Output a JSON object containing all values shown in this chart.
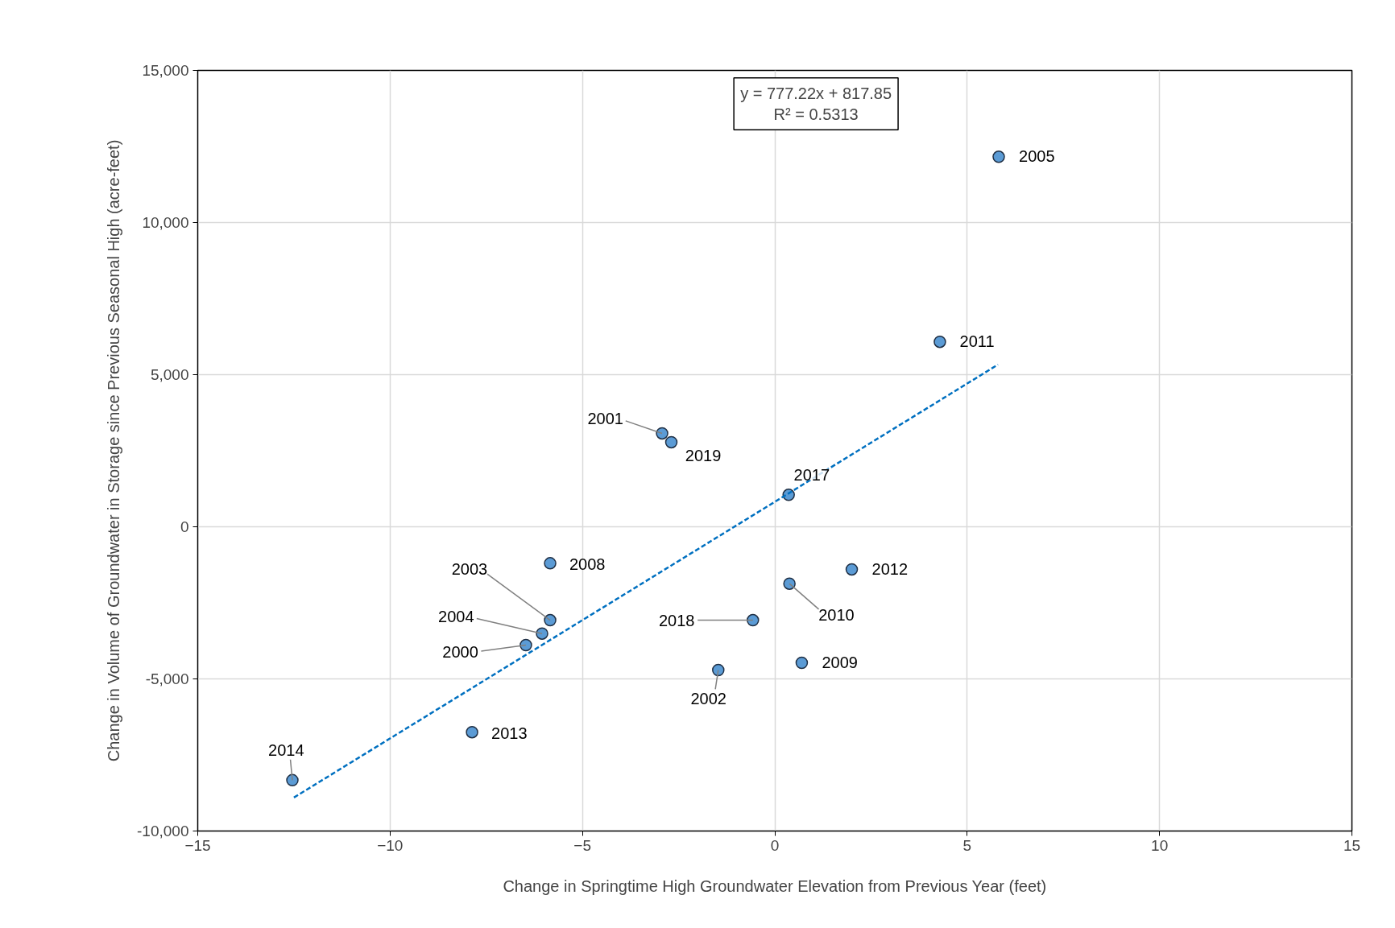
{
  "chart_data": {
    "type": "scatter",
    "xlabel": "Change in Springtime High Groundwater Elevation from Previous Year (feet)",
    "ylabel": "Change in Volume of Groundwater in Storage since Previous Seasonal High (acre-feet)",
    "xlim": [
      -15,
      15
    ],
    "xticks": [
      -15,
      -10,
      -5,
      0,
      5,
      10,
      15
    ],
    "ylim": [
      -10000,
      15000
    ],
    "yticks": [
      {
        "value": -10000,
        "label": "-10,000"
      },
      {
        "value": -5000,
        "label": "-5,000"
      },
      0,
      {
        "value": 5000,
        "label": "5,000"
      },
      {
        "value": 10000,
        "label": "10,000"
      },
      {
        "value": 15000,
        "label": "15,000"
      }
    ],
    "grid": true,
    "marker": "circle",
    "annotations": [
      "y = 777.22x + 817.85",
      "R² = 0.5313",
      {
        "text": "2000",
        "x": -6.47,
        "y": -3890
      },
      {
        "text": "2001",
        "x": -2.93,
        "y": 3070
      },
      {
        "text": "2002",
        "x": -1.47,
        "y": -4710
      },
      {
        "text": "2003",
        "x": -5.84,
        "y": -3070
      },
      {
        "text": "2004",
        "x": -6.05,
        "y": -3510
      },
      {
        "text": "2005",
        "x": 5.82,
        "y": 12160
      },
      {
        "text": "2008",
        "x": -5.84,
        "y": -1200
      },
      {
        "text": "2009",
        "x": 0.7,
        "y": -4470
      },
      {
        "text": "2010",
        "x": 0.38,
        "y": -1870
      },
      {
        "text": "2011",
        "x": 4.29,
        "y": 6080
      },
      {
        "text": "2012",
        "x": 2.0,
        "y": -1400
      },
      {
        "text": "2013",
        "x": -7.87,
        "y": -6750
      },
      {
        "text": "2014",
        "x": -12.54,
        "y": -8330
      },
      {
        "text": "2017",
        "x": 0.36,
        "y": 1050
      },
      {
        "text": "2018",
        "x": -0.57,
        "y": -3070
      },
      {
        "text": "2019",
        "x": -2.69,
        "y": 2780
      }
    ],
    "series": [
      {
        "color": "#5b9bd5",
        "x": [
          -6.47,
          -2.93,
          -1.47,
          -5.84,
          -6.05,
          5.82,
          -5.84,
          0.7,
          0.38,
          4.29,
          2.0,
          -7.87,
          -12.54,
          0.36,
          -0.57,
          -2.69
        ],
        "values": [
          -3890,
          3070,
          -4710,
          -3070,
          -3510,
          12160,
          -1200,
          -4470,
          -1870,
          6080,
          -1400,
          -6750,
          -8330,
          1050,
          -3070,
          2780
        ]
      },
      {
        "type": "line",
        "color": "#0070c0",
        "line_style": "dashed",
        "marker": "none",
        "x": [
          -12.5,
          5.8
        ],
        "values": [
          -8900,
          5330
        ]
      }
    ]
  }
}
